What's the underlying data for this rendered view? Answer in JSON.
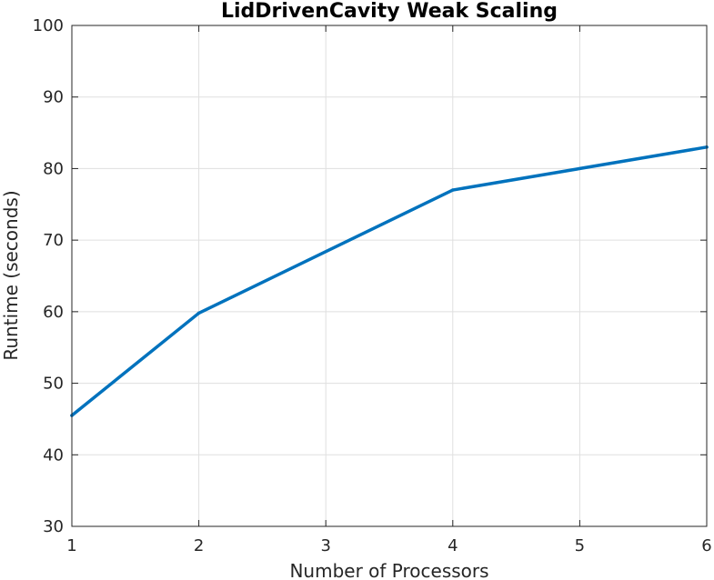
{
  "chart_data": {
    "type": "line",
    "title": "LidDrivenCavity Weak Scaling",
    "xlabel": "Number of Processors",
    "ylabel": "Runtime (seconds)",
    "xlim": [
      1,
      6
    ],
    "ylim": [
      30,
      100
    ],
    "xticks": [
      1,
      2,
      3,
      4,
      5,
      6
    ],
    "yticks": [
      30,
      40,
      50,
      60,
      70,
      80,
      90,
      100
    ],
    "grid": true,
    "box": true,
    "series": [
      {
        "color": "#0072bd",
        "x": [
          1,
          2,
          4,
          6
        ],
        "y": [
          45.5,
          59.8,
          77.0,
          83.0
        ]
      }
    ]
  }
}
